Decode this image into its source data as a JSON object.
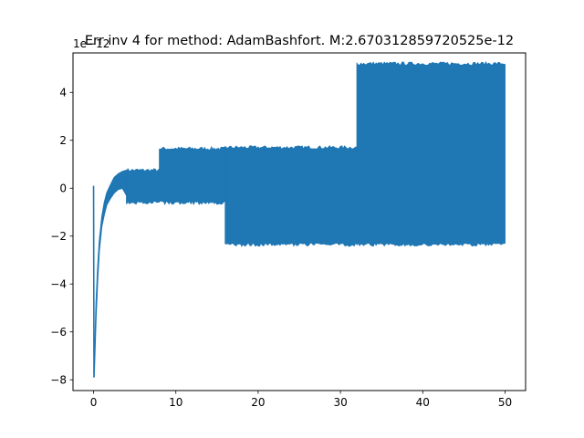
{
  "chart_data": {
    "type": "line",
    "title": "Err inv 4 for method: AdamBashfort. M:2.670312859720525e-12",
    "xlabel": "",
    "ylabel": "",
    "y_offset_label": "1e−12",
    "xlim": [
      -2.5,
      52.5
    ],
    "ylim": [
      -8.45,
      5.65
    ],
    "x_ticks": [
      0,
      10,
      20,
      30,
      40,
      50
    ],
    "x_tick_labels": [
      "0",
      "10",
      "20",
      "30",
      "40",
      "50"
    ],
    "y_ticks": [
      -8,
      -6,
      -4,
      -2,
      0,
      2,
      4
    ],
    "y_tick_labels": [
      "−8",
      "−6",
      "−4",
      "−2",
      "0",
      "2",
      "4"
    ],
    "grid": false,
    "legend": "none",
    "series": [
      {
        "color": "#1f77b4",
        "description_note": "oscillating error signal; envelope bands per x-interval (values in units of 1e-12)",
        "initial_transient": {
          "x": [
            0.0,
            0.05,
            0.1,
            0.2,
            0.3,
            0.5,
            0.7,
            1.0,
            1.3,
            1.6,
            2.0,
            2.5,
            3.0,
            3.5,
            4.0
          ],
          "lower": [
            0.1,
            -7.9,
            -7.6,
            -6.5,
            -5.4,
            -3.8,
            -2.6,
            -1.6,
            -1.1,
            -0.7,
            -0.45,
            -0.2,
            -0.05,
            0.0,
            -0.3
          ],
          "upper": [
            0.1,
            -7.6,
            -7.2,
            -6.0,
            -4.8,
            -3.3,
            -2.2,
            -1.2,
            -0.6,
            -0.2,
            0.1,
            0.45,
            0.6,
            0.7,
            0.75
          ]
        },
        "bands": [
          {
            "x_start": 4.0,
            "x_end": 8.0,
            "lower": -0.6,
            "upper": 0.75
          },
          {
            "x_start": 8.0,
            "x_end": 16.0,
            "lower": -0.6,
            "upper": 1.65
          },
          {
            "x_start": 16.0,
            "x_end": 32.0,
            "lower": -2.35,
            "upper": 1.7
          },
          {
            "x_start": 32.0,
            "x_end": 50.0,
            "lower": -2.35,
            "upper": 5.2
          }
        ]
      }
    ]
  }
}
